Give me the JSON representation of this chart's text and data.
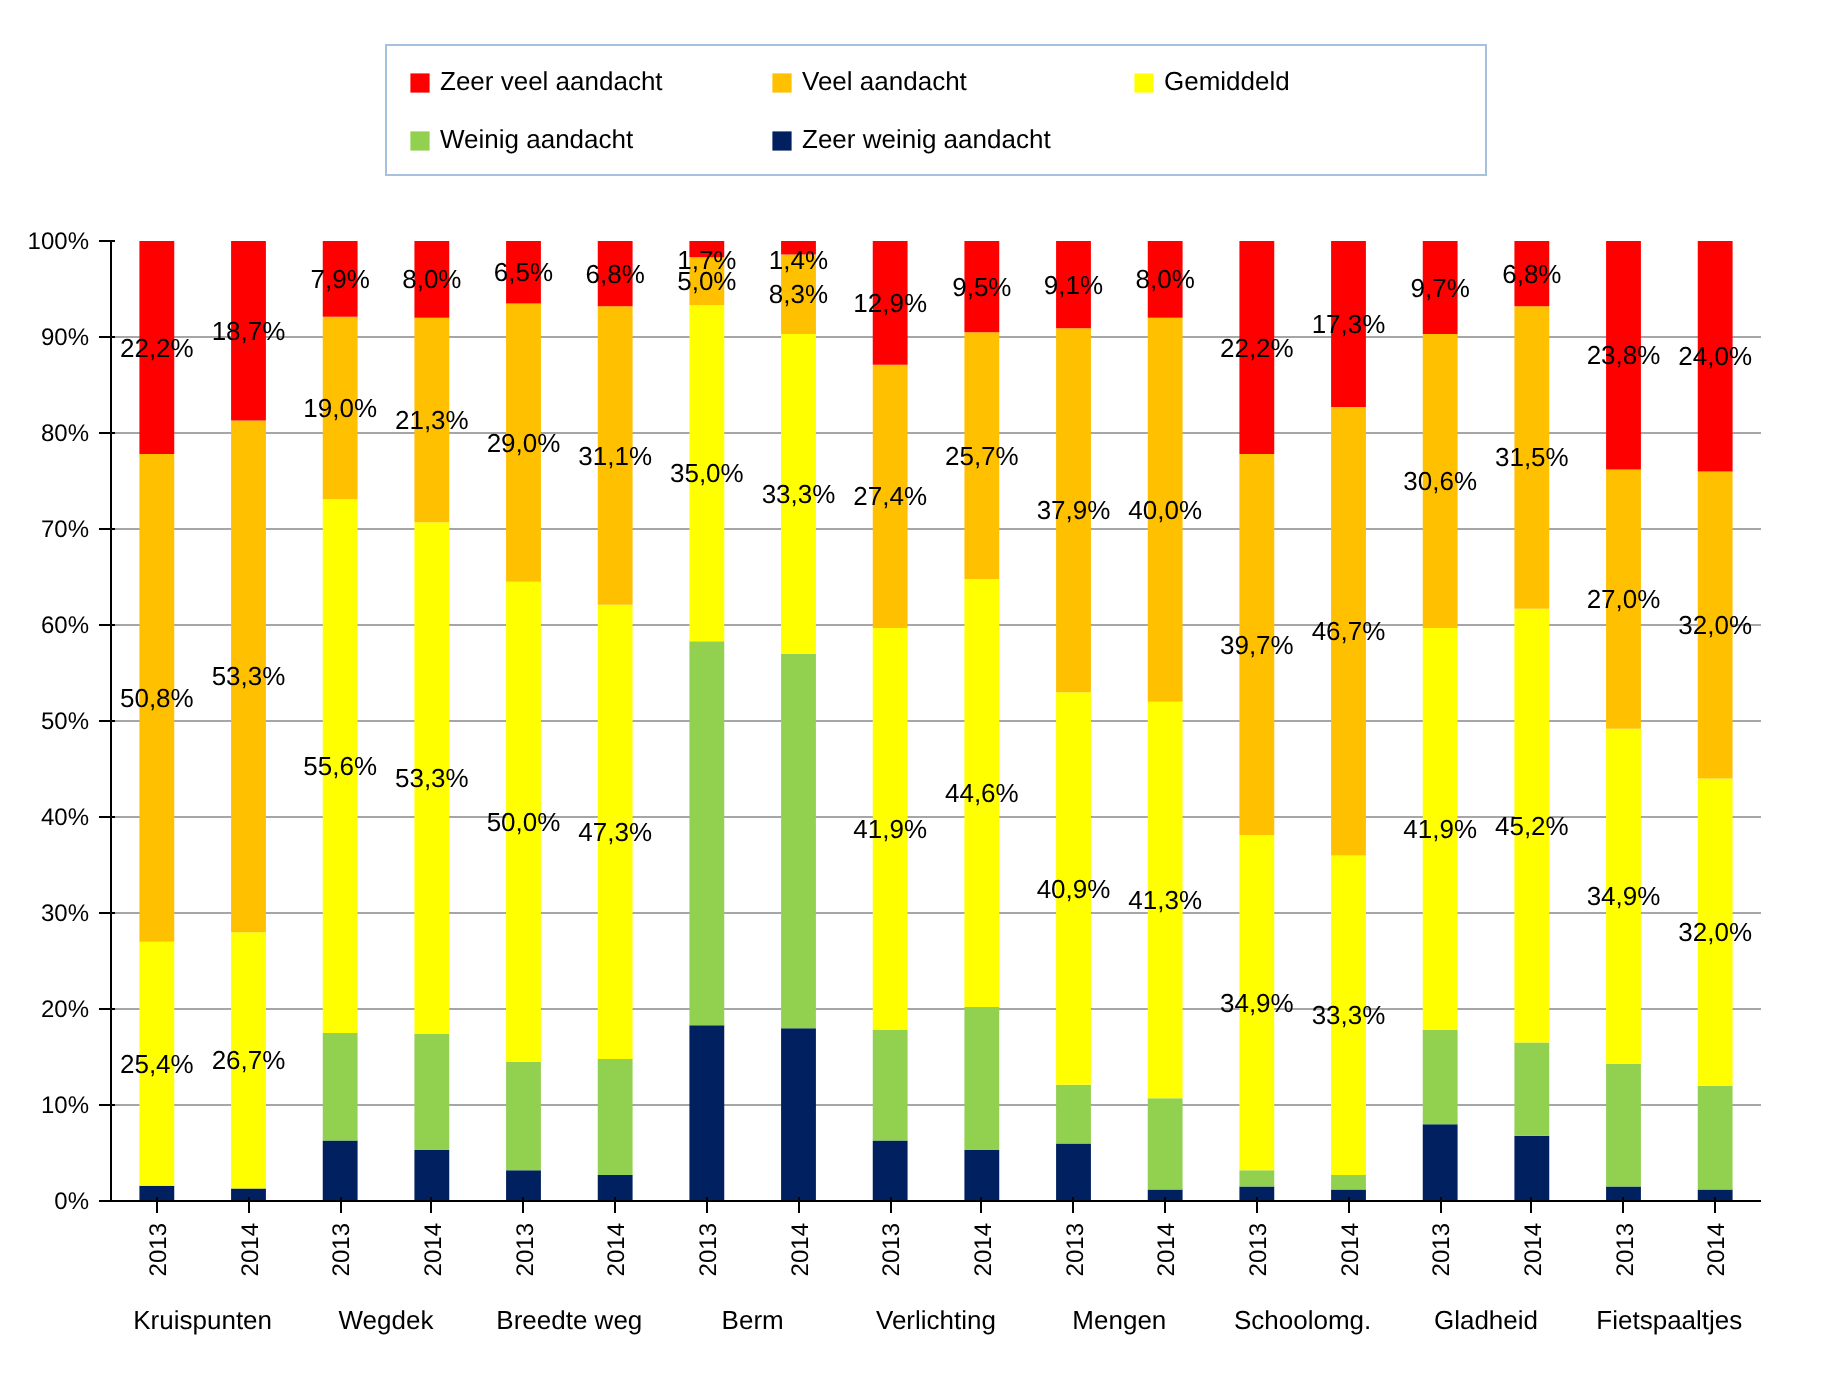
{
  "chart_data": {
    "type": "bar",
    "stacked": true,
    "categories": [
      "2013",
      "2014",
      "2013",
      "2014",
      "2013",
      "2014",
      "2013",
      "2014",
      "2013",
      "2014",
      "2013",
      "2014",
      "2013",
      "2014",
      "2013",
      "2014",
      "2013",
      "2014"
    ],
    "annotations": [
      "Kruispunten",
      "Wegdek",
      "Breedte weg",
      "Berm",
      "Verlichting",
      "Mengen",
      "Schoolomg.",
      "Gladheid",
      "Fietspaaltjes"
    ],
    "series": [
      {
        "name": "Zeer weinig aandacht",
        "color": "#002060",
        "values": [
          1.6,
          1.3,
          6.3,
          5.3,
          3.2,
          2.7,
          18.3,
          18.0,
          6.3,
          5.3,
          6.0,
          1.2,
          1.5,
          1.2,
          8.0,
          6.8,
          1.5,
          1.2
        ]
      },
      {
        "name": "Weinig aandacht",
        "color": "#92d050",
        "values": [
          0,
          0,
          11.2,
          12.1,
          11.3,
          12.1,
          40.0,
          39.0,
          11.5,
          14.9,
          6.1,
          9.5,
          1.7,
          1.5,
          9.8,
          9.7,
          12.8,
          10.8
        ]
      },
      {
        "name": "Gemiddeld",
        "color": "#ffff00",
        "values": [
          25.4,
          26.7,
          55.6,
          53.3,
          50.0,
          47.3,
          35.0,
          33.3,
          41.9,
          44.6,
          40.9,
          41.3,
          34.9,
          33.3,
          41.9,
          45.2,
          34.9,
          32.0
        ],
        "value_labels": [
          "25,4%",
          "26,7%",
          "55,6%",
          "53,3%",
          "50,0%",
          "47,3%",
          "35,0%",
          "33,3%",
          "41,9%",
          "44,6%",
          "40,9%",
          "41,3%",
          "34,9%",
          "33,3%",
          "41,9%",
          "45,2%",
          "34,9%",
          "32,0%"
        ]
      },
      {
        "name": "Veel aandacht",
        "color": "#ffc000",
        "values": [
          50.8,
          53.3,
          19.0,
          21.3,
          29.0,
          31.1,
          5.0,
          8.3,
          27.4,
          25.7,
          37.9,
          40.0,
          39.7,
          46.7,
          30.6,
          31.5,
          27.0,
          32.0
        ],
        "value_labels": [
          "50,8%",
          "53,3%",
          "19,0%",
          "21,3%",
          "29,0%",
          "31,1%",
          "5,0%",
          "8,3%",
          "27,4%",
          "25,7%",
          "37,9%",
          "40,0%",
          "39,7%",
          "46,7%",
          "30,6%",
          "31,5%",
          "27,0%",
          "32,0%"
        ]
      },
      {
        "name": "Zeer veel aandacht",
        "color": "#ff0000",
        "values": [
          22.2,
          18.7,
          7.9,
          8.0,
          6.5,
          6.8,
          1.7,
          1.4,
          12.9,
          9.5,
          9.1,
          8.0,
          22.2,
          17.3,
          9.7,
          6.8,
          23.8,
          24.0
        ],
        "value_labels": [
          "22,2%",
          "18,7%",
          "7,9%",
          "8,0%",
          "6,5%",
          "6,8%",
          "1,7%",
          "1,4%",
          "12,9%",
          "9,5%",
          "9,1%",
          "8,0%",
          "22,2%",
          "17,3%",
          "9,7%",
          "6,8%",
          "23,8%",
          "24,0%"
        ]
      }
    ],
    "ylim": [
      0,
      100
    ],
    "yticks": [
      {
        "value": 0,
        "label": "0%"
      },
      {
        "value": 10,
        "label": "10%"
      },
      {
        "value": 20,
        "label": "20%"
      },
      {
        "value": 30,
        "label": "30%"
      },
      {
        "value": 40,
        "label": "40%"
      },
      {
        "value": 50,
        "label": "50%"
      },
      {
        "value": 60,
        "label": "60%"
      },
      {
        "value": 70,
        "label": "70%"
      },
      {
        "value": 80,
        "label": "80%"
      },
      {
        "value": 90,
        "label": "90%"
      },
      {
        "value": 100,
        "label": "100%"
      }
    ],
    "grid": "y",
    "legend": "top"
  }
}
